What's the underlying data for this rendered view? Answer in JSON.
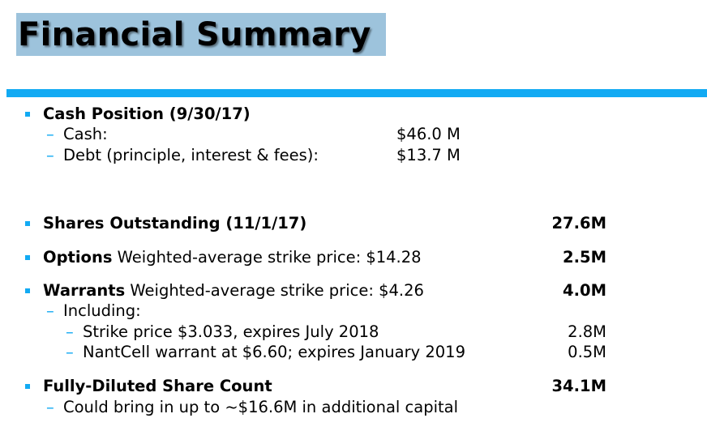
{
  "title": "Financial Summary",
  "accent_color": "#12aaf3",
  "cash_position": {
    "heading": "Cash Position (9/30/17)",
    "items": [
      {
        "label": "Cash:",
        "value": "$46.0 M"
      },
      {
        "label": "Debt (principle, interest & fees):",
        "value": "$13.7 M"
      }
    ]
  },
  "shares_outstanding": {
    "heading": "Shares Outstanding (11/1/17)",
    "value": "27.6M"
  },
  "options": {
    "heading": "Options",
    "detail": " Weighted-average strike price: $14.28",
    "value": "2.5M"
  },
  "warrants": {
    "heading": "Warrants",
    "detail": " Weighted-average strike price:  $4.26",
    "value": "4.0M",
    "including_label": "Including:",
    "items": [
      {
        "label": "Strike price $3.033, expires July 2018",
        "value": "2.8M"
      },
      {
        "label": "NantCell warrant at $6.60; expires January 2019",
        "value": "0.5M"
      }
    ]
  },
  "fully_diluted": {
    "heading": "Fully-Diluted Share Count",
    "value": "34.1M",
    "note": "Could bring in up to ~$16.6M in additional capital"
  }
}
